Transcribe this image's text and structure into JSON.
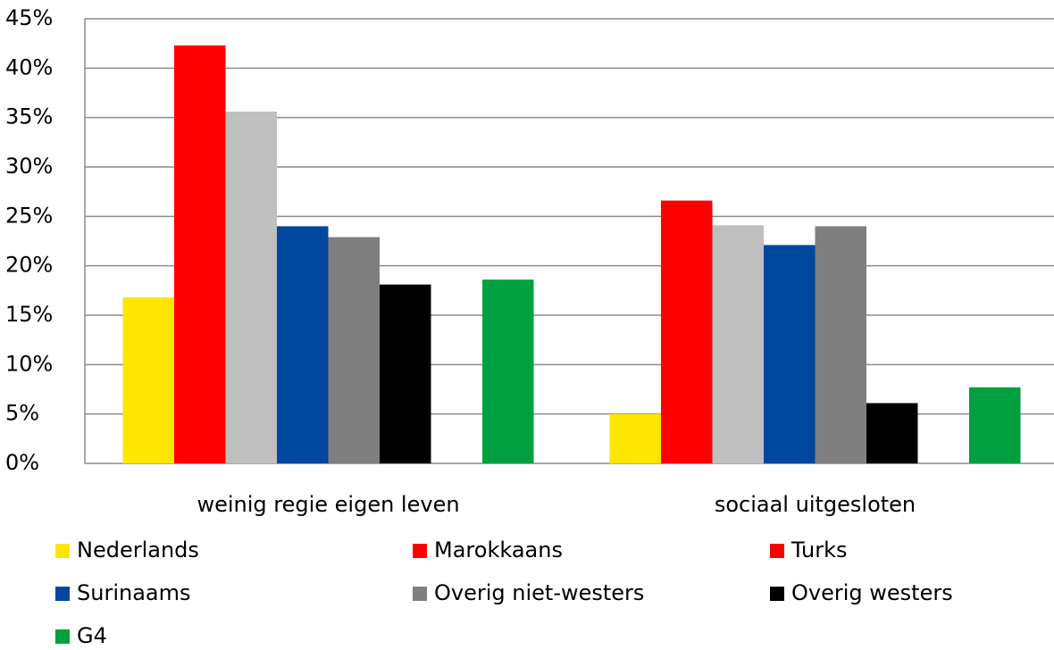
{
  "chart_data": {
    "type": "bar",
    "categories": [
      "weinig regie eigen leven",
      "sociaal uitgesloten"
    ],
    "series": [
      {
        "name": "Nederlands",
        "color": "#ffe600",
        "legend_color": "#ffe600",
        "values": [
          16.8,
          5.0
        ]
      },
      {
        "name": "Marokkaans",
        "color": "#ff0000",
        "legend_color": "#ff0000",
        "values": [
          42.3,
          26.6
        ]
      },
      {
        "name": "Turks",
        "color": "#bfbfbf",
        "legend_color": "#ff0000",
        "values": [
          35.6,
          24.1
        ]
      },
      {
        "name": "Surinaams",
        "color": "#0047a0",
        "legend_color": "#0047a0",
        "values": [
          24.0,
          22.1
        ]
      },
      {
        "name": "Overig niet-westers",
        "color": "#7f7f7f",
        "legend_color": "#7f7f7f",
        "values": [
          22.9,
          24.0
        ]
      },
      {
        "name": "Overig westers",
        "color": "#000000",
        "legend_color": "#000000",
        "values": [
          18.1,
          6.1
        ]
      },
      {
        "name": "G4",
        "color": "#00a040",
        "legend_color": "#00a040",
        "values": [
          18.6,
          7.7
        ]
      }
    ],
    "ylim": [
      0,
      45
    ],
    "yticks": [
      {
        "value": 0,
        "label": "0%"
      },
      {
        "value": 5,
        "label": "5%"
      },
      {
        "value": 10,
        "label": "10%"
      },
      {
        "value": 15,
        "label": "15%"
      },
      {
        "value": 20,
        "label": "20%"
      },
      {
        "value": 25,
        "label": "25%"
      },
      {
        "value": 30,
        "label": "30%"
      },
      {
        "value": 35,
        "label": "35%"
      },
      {
        "value": 40,
        "label": "40%"
      },
      {
        "value": 45,
        "label": "45%"
      }
    ],
    "grid": true
  }
}
